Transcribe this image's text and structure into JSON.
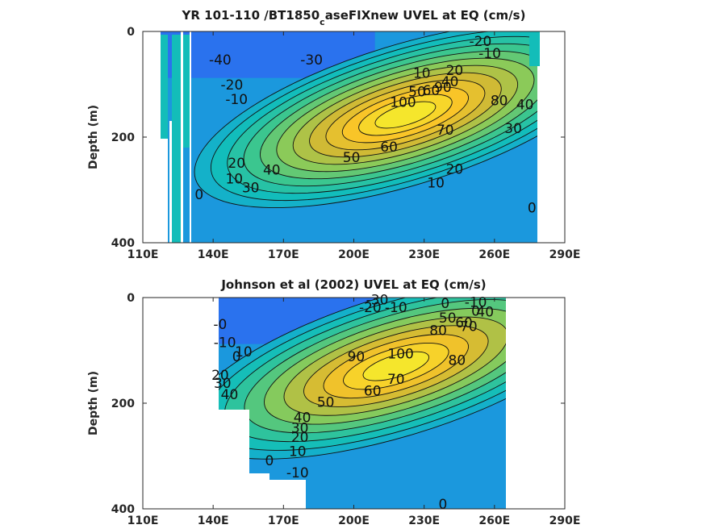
{
  "colormap": [
    "#3e26a8",
    "#2c6ef4",
    "#15a5d6",
    "#12bdbb",
    "#3bc68f",
    "#8bca59",
    "#d0ba35",
    "#f9c528",
    "#f5e62c"
  ],
  "chart_data": [
    {
      "type": "contour",
      "title_main": "YR 101-110 /BT1850",
      "title_sub": "c",
      "title_rest": "aseFIXnew UVEL at EQ (cm/s)",
      "xlabel": "",
      "ylabel": "Depth (m)",
      "x_ticks": [
        "110E",
        "140E",
        "170E",
        "200E",
        "230E",
        "260E",
        "290E"
      ],
      "x_tick_values": [
        110,
        140,
        170,
        200,
        230,
        260,
        290
      ],
      "y_ticks": [
        "0",
        "200",
        "400"
      ],
      "y_tick_values": [
        0,
        200,
        400
      ],
      "xlim": [
        110,
        290
      ],
      "ylim": [
        0,
        400
      ],
      "y_reversed": true,
      "grid": false,
      "core": {
        "lon": 222,
        "depth": 158,
        "speed_max": 120
      },
      "contour_levels": [
        -40,
        -30,
        -20,
        -10,
        0,
        10,
        20,
        30,
        40,
        50,
        60,
        70,
        80,
        90,
        100,
        110,
        120
      ],
      "labels": [
        {
          "text": "-40",
          "lon": 143,
          "depth": 55
        },
        {
          "text": "-30",
          "lon": 182,
          "depth": 55
        },
        {
          "text": "-20",
          "lon": 254,
          "depth": 20
        },
        {
          "text": "-10",
          "lon": 258,
          "depth": 43
        },
        {
          "text": "-20",
          "lon": 148,
          "depth": 102
        },
        {
          "text": "-10",
          "lon": 150,
          "depth": 130
        },
        {
          "text": "20",
          "lon": 243,
          "depth": 75
        },
        {
          "text": "10",
          "lon": 229,
          "depth": 80
        },
        {
          "text": "40",
          "lon": 241,
          "depth": 96
        },
        {
          "text": "50",
          "lon": 227,
          "depth": 115
        },
        {
          "text": "60",
          "lon": 233,
          "depth": 113
        },
        {
          "text": "90",
          "lon": 238,
          "depth": 107
        },
        {
          "text": "100",
          "lon": 221,
          "depth": 135
        },
        {
          "text": "80",
          "lon": 262,
          "depth": 132
        },
        {
          "text": "40",
          "lon": 273,
          "depth": 140
        },
        {
          "text": "30",
          "lon": 268,
          "depth": 185
        },
        {
          "text": "70",
          "lon": 239,
          "depth": 188
        },
        {
          "text": "60",
          "lon": 215,
          "depth": 220
        },
        {
          "text": "50",
          "lon": 199,
          "depth": 240
        },
        {
          "text": "40",
          "lon": 165,
          "depth": 263
        },
        {
          "text": "30",
          "lon": 156,
          "depth": 297
        },
        {
          "text": "20",
          "lon": 150,
          "depth": 250
        },
        {
          "text": "10",
          "lon": 149,
          "depth": 280
        },
        {
          "text": "20",
          "lon": 243,
          "depth": 262
        },
        {
          "text": "10",
          "lon": 235,
          "depth": 288
        },
        {
          "text": "0",
          "lon": 134,
          "depth": 310
        },
        {
          "text": "0",
          "lon": 276,
          "depth": 335
        }
      ]
    },
    {
      "type": "contour",
      "title_main": "Johnson et al (2002) UVEL at EQ (cm/s)",
      "title_sub": "",
      "title_rest": "",
      "xlabel": "",
      "ylabel": "Depth (m)",
      "x_ticks": [
        "110E",
        "140E",
        "170E",
        "200E",
        "230E",
        "260E",
        "290E"
      ],
      "x_tick_values": [
        110,
        140,
        170,
        200,
        230,
        260,
        290
      ],
      "y_ticks": [
        "0",
        "200",
        "400"
      ],
      "y_tick_values": [
        0,
        200,
        400
      ],
      "xlim": [
        110,
        290
      ],
      "ylim": [
        0,
        400
      ],
      "y_reversed": true,
      "grid": false,
      "core": {
        "lon": 218,
        "depth": 130,
        "speed_max": 100
      },
      "contour_levels": [
        -30,
        -20,
        -10,
        0,
        10,
        20,
        30,
        40,
        50,
        60,
        70,
        80,
        90,
        100
      ],
      "labels": [
        {
          "text": "-30",
          "lon": 210,
          "depth": 5
        },
        {
          "text": "-20",
          "lon": 207,
          "depth": 20
        },
        {
          "text": "-10",
          "lon": 218,
          "depth": 20
        },
        {
          "text": "0",
          "lon": 239,
          "depth": 12
        },
        {
          "text": "-10",
          "lon": 252,
          "depth": 10
        },
        {
          "text": "0",
          "lon": 252,
          "depth": 27
        },
        {
          "text": "50",
          "lon": 240,
          "depth": 40
        },
        {
          "text": "40",
          "lon": 256,
          "depth": 28
        },
        {
          "text": "60",
          "lon": 247,
          "depth": 49
        },
        {
          "text": "70",
          "lon": 249,
          "depth": 56
        },
        {
          "text": "80",
          "lon": 236,
          "depth": 63
        },
        {
          "text": "-0",
          "lon": 143,
          "depth": 52
        },
        {
          "text": "-10",
          "lon": 145,
          "depth": 86
        },
        {
          "text": "0",
          "lon": 150,
          "depth": 113
        },
        {
          "text": "10",
          "lon": 153,
          "depth": 104
        },
        {
          "text": "20",
          "lon": 143,
          "depth": 148
        },
        {
          "text": "30",
          "lon": 144,
          "depth": 163
        },
        {
          "text": "40",
          "lon": 147,
          "depth": 185
        },
        {
          "text": "90",
          "lon": 201,
          "depth": 113
        },
        {
          "text": "100",
          "lon": 220,
          "depth": 108
        },
        {
          "text": "80",
          "lon": 244,
          "depth": 120
        },
        {
          "text": "70",
          "lon": 218,
          "depth": 156
        },
        {
          "text": "60",
          "lon": 208,
          "depth": 178
        },
        {
          "text": "50",
          "lon": 188,
          "depth": 199
        },
        {
          "text": "40",
          "lon": 178,
          "depth": 228
        },
        {
          "text": "30",
          "lon": 177,
          "depth": 248
        },
        {
          "text": "20",
          "lon": 177,
          "depth": 266
        },
        {
          "text": "10",
          "lon": 176,
          "depth": 292
        },
        {
          "text": "0",
          "lon": 164,
          "depth": 310
        },
        {
          "text": "-10",
          "lon": 176,
          "depth": 333
        },
        {
          "text": "0",
          "lon": 238,
          "depth": 392
        }
      ]
    }
  ]
}
